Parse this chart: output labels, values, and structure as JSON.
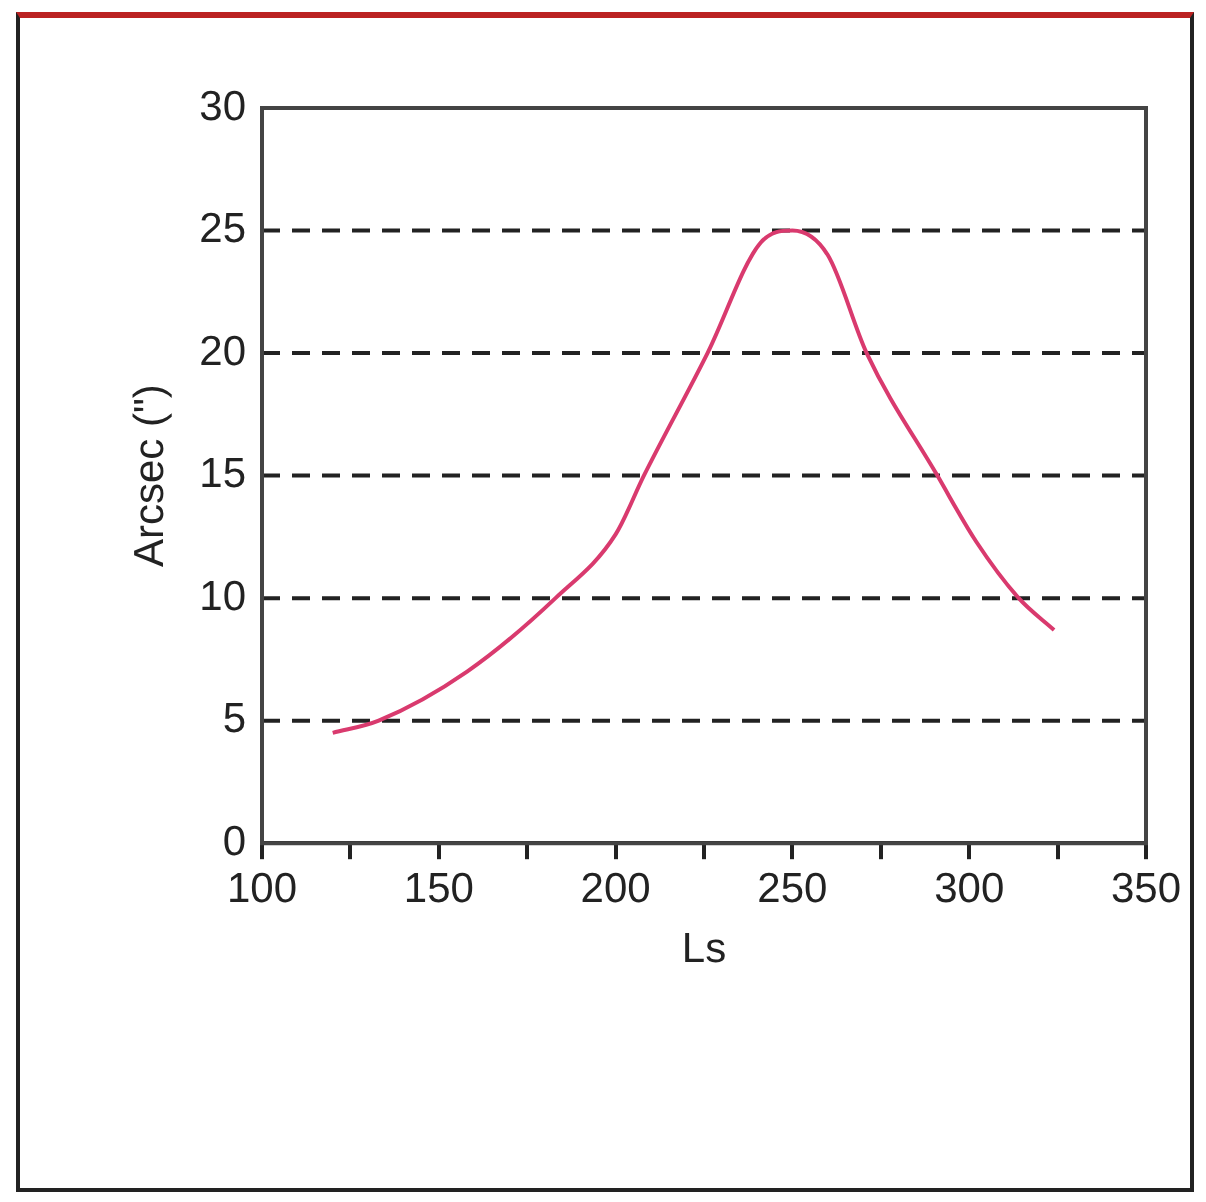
{
  "chart_data": {
    "type": "line",
    "xlabel": "Ls",
    "ylabel": "Arcsec (\")",
    "series": [
      {
        "color": "#d93a6e",
        "x": [
          120,
          133,
          158,
          183,
          200,
          208,
          226,
          241,
          250,
          260,
          271,
          291,
          302,
          314,
          324
        ],
        "values": [
          4.5,
          5,
          7,
          10,
          12.6,
          15,
          20,
          24.5,
          25,
          24,
          20,
          15,
          12.3,
          10,
          8.7
        ]
      }
    ],
    "xlim": [
      100,
      350
    ],
    "xticks": [
      100,
      {
        "value": 125,
        "label": null
      },
      150,
      {
        "value": 175,
        "label": null
      },
      200,
      {
        "value": 225,
        "label": null
      },
      250,
      {
        "value": 275,
        "label": null
      },
      300,
      {
        "value": 325,
        "label": null
      },
      350
    ],
    "ylim": [
      0,
      30
    ],
    "yticks": [
      0,
      5,
      10,
      15,
      20,
      25,
      30
    ],
    "grid": "y",
    "legend": false,
    "marker": "none",
    "line_style": "solid"
  }
}
